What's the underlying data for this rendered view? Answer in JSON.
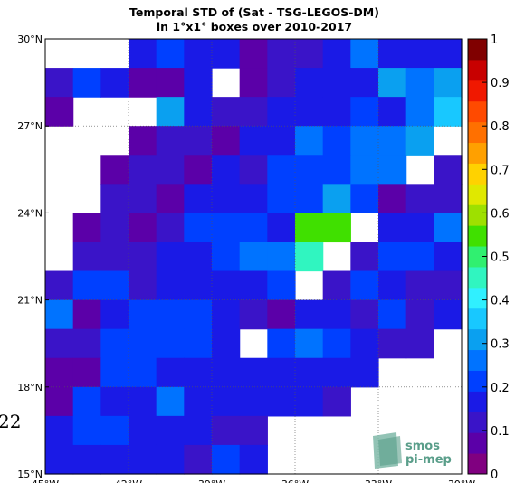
{
  "chart_data": {
    "type": "heatmap",
    "title_lines": [
      "Temporal STD of (Sat - TSG-LEGOS-DM)",
      "in 1°x1° boxes over 2010-2017"
    ],
    "y_ticks": [
      "30°N",
      "27°N",
      "24°N",
      "21°N",
      "18°N",
      "15°N"
    ],
    "x_ticks": [
      "45°W",
      "42°W",
      "39°W",
      "36°W",
      "33°W",
      "30°W"
    ],
    "colorbar_ticks": [
      "1",
      "0.9",
      "0.8",
      "0.7",
      "0.6",
      "0.5",
      "0.4",
      "0.3",
      "0.2",
      "0.1",
      "0"
    ],
    "colorbar_range": [
      0,
      1
    ],
    "colorbar_colors": [
      "#800080",
      "#5b00a8",
      "#3a14c8",
      "#1a1ae6",
      "#0040ff",
      "#0073ff",
      "#0aa0f0",
      "#18c8ff",
      "#30f0ff",
      "#30f5c0",
      "#30f070",
      "#40e000",
      "#9ee000",
      "#e0e800",
      "#ffd200",
      "#ffa000",
      "#ff7000",
      "#ff4a00",
      "#f01800",
      "#c80000",
      "#800000"
    ],
    "rows_lat_top_to_bottom": "15 rows from 30°N down to 15°N",
    "cols_lon_left_to_right": "15 columns from 45°W to 30°W",
    "grid": [
      [
        null,
        null,
        null,
        0.19,
        0.22,
        0.19,
        0.19,
        0.05,
        0.13,
        0.13,
        0.19,
        0.25,
        0.18,
        0.18,
        0.18
      ],
      [
        0.12,
        0.22,
        0.18,
        0.06,
        0.06,
        0.19,
        null,
        0.08,
        0.12,
        0.17,
        0.17,
        0.18,
        0.32,
        0.26,
        0.32
      ],
      [
        0.05,
        null,
        null,
        null,
        0.33,
        0.19,
        0.1,
        0.1,
        0.18,
        0.18,
        0.19,
        0.2,
        0.18,
        0.25,
        0.38
      ],
      [
        null,
        null,
        null,
        0.05,
        0.12,
        0.13,
        0.05,
        0.18,
        0.18,
        0.26,
        0.2,
        0.26,
        0.25,
        0.32,
        null
      ],
      [
        null,
        null,
        0.06,
        0.12,
        0.13,
        0.09,
        0.18,
        0.13,
        0.2,
        0.2,
        0.22,
        0.25,
        0.26,
        null,
        0.13
      ],
      [
        null,
        null,
        0.1,
        0.12,
        0.06,
        0.18,
        0.18,
        0.18,
        0.2,
        0.22,
        0.31,
        0.2,
        0.06,
        0.12,
        0.12
      ],
      [
        null,
        0.08,
        0.12,
        0.06,
        0.11,
        0.21,
        0.2,
        0.2,
        0.18,
        0.53,
        0.53,
        null,
        0.19,
        0.19,
        0.25
      ],
      [
        null,
        0.12,
        0.12,
        0.1,
        0.19,
        0.18,
        0.21,
        0.26,
        0.26,
        0.44,
        null,
        0.13,
        0.2,
        0.2,
        0.18
      ],
      [
        0.14,
        0.21,
        0.21,
        0.14,
        0.18,
        0.18,
        0.18,
        0.18,
        0.21,
        null,
        0.13,
        0.2,
        0.18,
        0.12,
        0.12
      ],
      [
        0.25,
        0.08,
        0.18,
        0.22,
        0.22,
        0.22,
        0.18,
        0.12,
        0.08,
        0.18,
        0.18,
        0.13,
        0.2,
        0.12,
        0.18
      ],
      [
        0.12,
        0.12,
        0.21,
        0.21,
        0.21,
        0.21,
        0.18,
        null,
        0.2,
        0.26,
        0.2,
        0.18,
        0.13,
        0.13,
        null
      ],
      [
        0.08,
        0.05,
        0.21,
        0.21,
        0.18,
        0.18,
        0.18,
        0.18,
        0.18,
        0.18,
        0.18,
        0.18,
        null,
        null,
        null
      ],
      [
        0.08,
        0.21,
        0.18,
        0.18,
        0.26,
        0.18,
        0.18,
        0.18,
        0.18,
        0.18,
        0.12,
        null,
        null,
        null,
        null
      ],
      [
        0.18,
        0.21,
        0.21,
        0.19,
        0.19,
        0.19,
        0.12,
        0.12,
        null,
        null,
        null,
        null,
        null,
        null,
        null
      ],
      [
        0.18,
        0.19,
        0.19,
        0.19,
        0.19,
        0.13,
        0.22,
        0.18,
        null,
        null,
        null,
        null,
        null,
        null,
        null
      ]
    ]
  },
  "stray_text": "22",
  "logo": {
    "line1": "smos",
    "line2": "pi-mep"
  }
}
